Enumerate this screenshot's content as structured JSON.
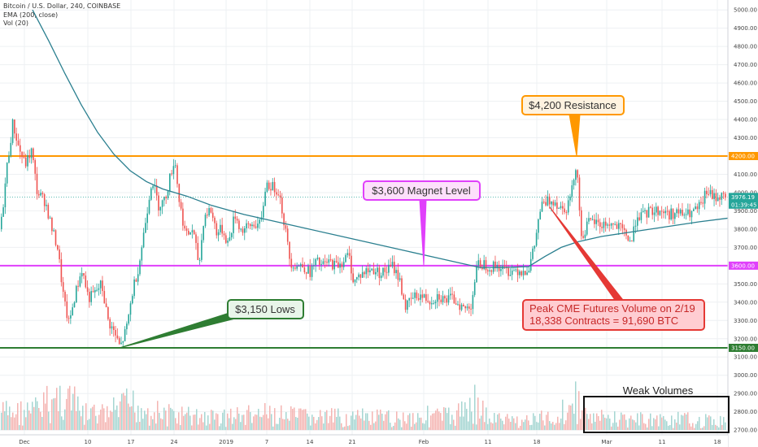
{
  "header": {
    "symbol": "Bitcoin / U.S. Dollar, 240, COINBASE",
    "ema": "EMA (200, close)",
    "vol": "Vol (20)"
  },
  "chart_data": {
    "type": "candlestick",
    "yaxis": {
      "ticks": [
        "5000.00",
        "4900.00",
        "4800.00",
        "4700.00",
        "4600.00",
        "4500.00",
        "4400.00",
        "4300.00",
        "4200.00",
        "4100.00",
        "4000.00",
        "3900.00",
        "3800.00",
        "3700.00",
        "3600.00",
        "3500.00",
        "3400.00",
        "3300.00",
        "3200.00",
        "3100.00",
        "3000.00",
        "2900.00",
        "2800.00",
        "2700.00"
      ],
      "ylim": [
        2700,
        5000
      ]
    },
    "xaxis": {
      "ticks": [
        "Dec",
        "10",
        "17",
        "24",
        "2019",
        "7",
        "14",
        "21",
        "Feb",
        "11",
        "18",
        "Mar",
        "11",
        "18"
      ],
      "tick_index": [
        30,
        108,
        161,
        214,
        278,
        328,
        381,
        433,
        521,
        600,
        660,
        746,
        814,
        882
      ]
    },
    "price_tags": [
      {
        "label": "4200.00",
        "value": 4200,
        "color": "#ff9800"
      },
      {
        "label": "3976.19",
        "value": 3976,
        "color": "#26a69a"
      },
      {
        "label": "01:39:45",
        "value": 3934,
        "color": "#26a69a"
      },
      {
        "label": "3600.00",
        "value": 3600,
        "color": "#e040fb"
      },
      {
        "label": "3150.00",
        "value": 3150,
        "color": "#2e7d32"
      }
    ],
    "levels": [
      {
        "value": 4200,
        "color": "#ff9800"
      },
      {
        "value": 3600,
        "color": "#e040fb"
      },
      {
        "value": 3150,
        "color": "#2e7d32"
      },
      {
        "value": 3976,
        "color": "#26a69a",
        "dotted": true
      }
    ],
    "price_path": [
      [
        0,
        3800
      ],
      [
        8,
        4150
      ],
      [
        15,
        4380
      ],
      [
        22,
        4250
      ],
      [
        30,
        4150
      ],
      [
        38,
        4230
      ],
      [
        45,
        4000
      ],
      [
        55,
        3950
      ],
      [
        63,
        3800
      ],
      [
        70,
        3700
      ],
      [
        78,
        3400
      ],
      [
        84,
        3280
      ],
      [
        92,
        3450
      ],
      [
        100,
        3580
      ],
      [
        108,
        3420
      ],
      [
        116,
        3450
      ],
      [
        124,
        3500
      ],
      [
        132,
        3300
      ],
      [
        140,
        3230
      ],
      [
        147,
        3150
      ],
      [
        155,
        3260
      ],
      [
        163,
        3480
      ],
      [
        170,
        3600
      ],
      [
        178,
        3840
      ],
      [
        186,
        4080
      ],
      [
        194,
        3930
      ],
      [
        202,
        3960
      ],
      [
        208,
        4080
      ],
      [
        214,
        4190
      ],
      [
        220,
        3940
      ],
      [
        228,
        3760
      ],
      [
        236,
        3800
      ],
      [
        244,
        3600
      ],
      [
        250,
        3870
      ],
      [
        258,
        3910
      ],
      [
        266,
        3780
      ],
      [
        272,
        3800
      ],
      [
        280,
        3720
      ],
      [
        288,
        3880
      ],
      [
        296,
        3790
      ],
      [
        304,
        3810
      ],
      [
        312,
        3830
      ],
      [
        320,
        3820
      ],
      [
        326,
        4050
      ],
      [
        334,
        4030
      ],
      [
        342,
        4010
      ],
      [
        350,
        3800
      ],
      [
        356,
        3620
      ],
      [
        364,
        3600
      ],
      [
        372,
        3600
      ],
      [
        380,
        3560
      ],
      [
        388,
        3620
      ],
      [
        396,
        3600
      ],
      [
        404,
        3620
      ],
      [
        412,
        3600
      ],
      [
        420,
        3620
      ],
      [
        428,
        3660
      ],
      [
        434,
        3510
      ],
      [
        442,
        3550
      ],
      [
        450,
        3570
      ],
      [
        458,
        3580
      ],
      [
        466,
        3560
      ],
      [
        474,
        3570
      ],
      [
        482,
        3600
      ],
      [
        490,
        3530
      ],
      [
        498,
        3370
      ],
      [
        506,
        3420
      ],
      [
        514,
        3440
      ],
      [
        522,
        3420
      ],
      [
        530,
        3410
      ],
      [
        538,
        3440
      ],
      [
        546,
        3410
      ],
      [
        554,
        3420
      ],
      [
        562,
        3400
      ],
      [
        570,
        3360
      ],
      [
        578,
        3380
      ],
      [
        586,
        3600
      ],
      [
        594,
        3610
      ],
      [
        602,
        3590
      ],
      [
        610,
        3600
      ],
      [
        618,
        3580
      ],
      [
        626,
        3570
      ],
      [
        634,
        3580
      ],
      [
        642,
        3570
      ],
      [
        650,
        3590
      ],
      [
        656,
        3700
      ],
      [
        664,
        3920
      ],
      [
        672,
        3950
      ],
      [
        680,
        3960
      ],
      [
        688,
        3920
      ],
      [
        696,
        3920
      ],
      [
        702,
        4000
      ],
      [
        708,
        4180
      ],
      [
        714,
        3750
      ],
      [
        722,
        3830
      ],
      [
        730,
        3840
      ],
      [
        738,
        3820
      ],
      [
        746,
        3830
      ],
      [
        754,
        3820
      ],
      [
        762,
        3800
      ],
      [
        770,
        3760
      ],
      [
        776,
        3730
      ],
      [
        782,
        3880
      ],
      [
        790,
        3870
      ],
      [
        798,
        3900
      ],
      [
        806,
        3900
      ],
      [
        814,
        3900
      ],
      [
        822,
        3880
      ],
      [
        830,
        3890
      ],
      [
        838,
        3880
      ],
      [
        846,
        3880
      ],
      [
        854,
        3900
      ],
      [
        862,
        3930
      ],
      [
        868,
        4010
      ],
      [
        876,
        3970
      ],
      [
        884,
        3980
      ],
      [
        892,
        3976
      ]
    ],
    "ema_path": [
      [
        40,
        5000
      ],
      [
        60,
        4830
      ],
      [
        80,
        4650
      ],
      [
        100,
        4480
      ],
      [
        120,
        4330
      ],
      [
        140,
        4210
      ],
      [
        160,
        4120
      ],
      [
        180,
        4060
      ],
      [
        200,
        4020
      ],
      [
        230,
        3980
      ],
      [
        260,
        3930
      ],
      [
        300,
        3880
      ],
      [
        340,
        3840
      ],
      [
        380,
        3800
      ],
      [
        420,
        3760
      ],
      [
        460,
        3720
      ],
      [
        500,
        3680
      ],
      [
        540,
        3640
      ],
      [
        570,
        3610
      ],
      [
        590,
        3590
      ],
      [
        620,
        3590
      ],
      [
        650,
        3595
      ],
      [
        670,
        3650
      ],
      [
        690,
        3700
      ],
      [
        710,
        3730
      ],
      [
        740,
        3760
      ],
      [
        770,
        3780
      ],
      [
        800,
        3800
      ],
      [
        830,
        3820
      ],
      [
        860,
        3840
      ],
      [
        895,
        3860
      ]
    ],
    "volume_path": [
      [
        0,
        2870
      ],
      [
        40,
        2880
      ],
      [
        80,
        3050
      ],
      [
        100,
        2850
      ],
      [
        130,
        2850
      ],
      [
        160,
        2950
      ],
      [
        200,
        2850
      ],
      [
        260,
        2820
      ],
      [
        320,
        2850
      ],
      [
        360,
        2830
      ],
      [
        400,
        2820
      ],
      [
        440,
        2820
      ],
      [
        480,
        2810
      ],
      [
        520,
        2840
      ],
      [
        560,
        2830
      ],
      [
        580,
        3000
      ],
      [
        600,
        2810
      ],
      [
        640,
        2790
      ],
      [
        680,
        2820
      ],
      [
        708,
        2980
      ],
      [
        720,
        2820
      ],
      [
        780,
        2800
      ],
      [
        840,
        2800
      ],
      [
        895,
        2780
      ]
    ],
    "annotations": [
      {
        "text": "$4,200 Resistance",
        "fill": "#fff3e0",
        "stroke": "#ff9800",
        "color": "#333333",
        "anchor": [
          709,
          4200
        ]
      },
      {
        "text": "$3,600 Magnet Level",
        "fill": "#fde0fb",
        "stroke": "#e040fb",
        "color": "#333333",
        "anchor": [
          521,
          3600
        ]
      },
      {
        "text": "$3,150 Lows",
        "fill": "#e8f5e9",
        "stroke": "#2e7d32",
        "color": "#333333",
        "anchor": [
          147,
          3150
        ]
      },
      {
        "text": "Peak CME Futures Volume on 2/19",
        "text2": "18,338 Contracts = 91,690 BTC",
        "fill": "#ffcdd2",
        "stroke": "#e53935",
        "color": "#c62828",
        "anchor": [
          676,
          3920
        ]
      }
    ],
    "volume_note": {
      "text": "Weak Volumes"
    },
    "colors": {
      "up": "#26a69a",
      "down": "#ef5350",
      "ema": "#2a7f8f",
      "grid": "#eef0f3"
    }
  }
}
